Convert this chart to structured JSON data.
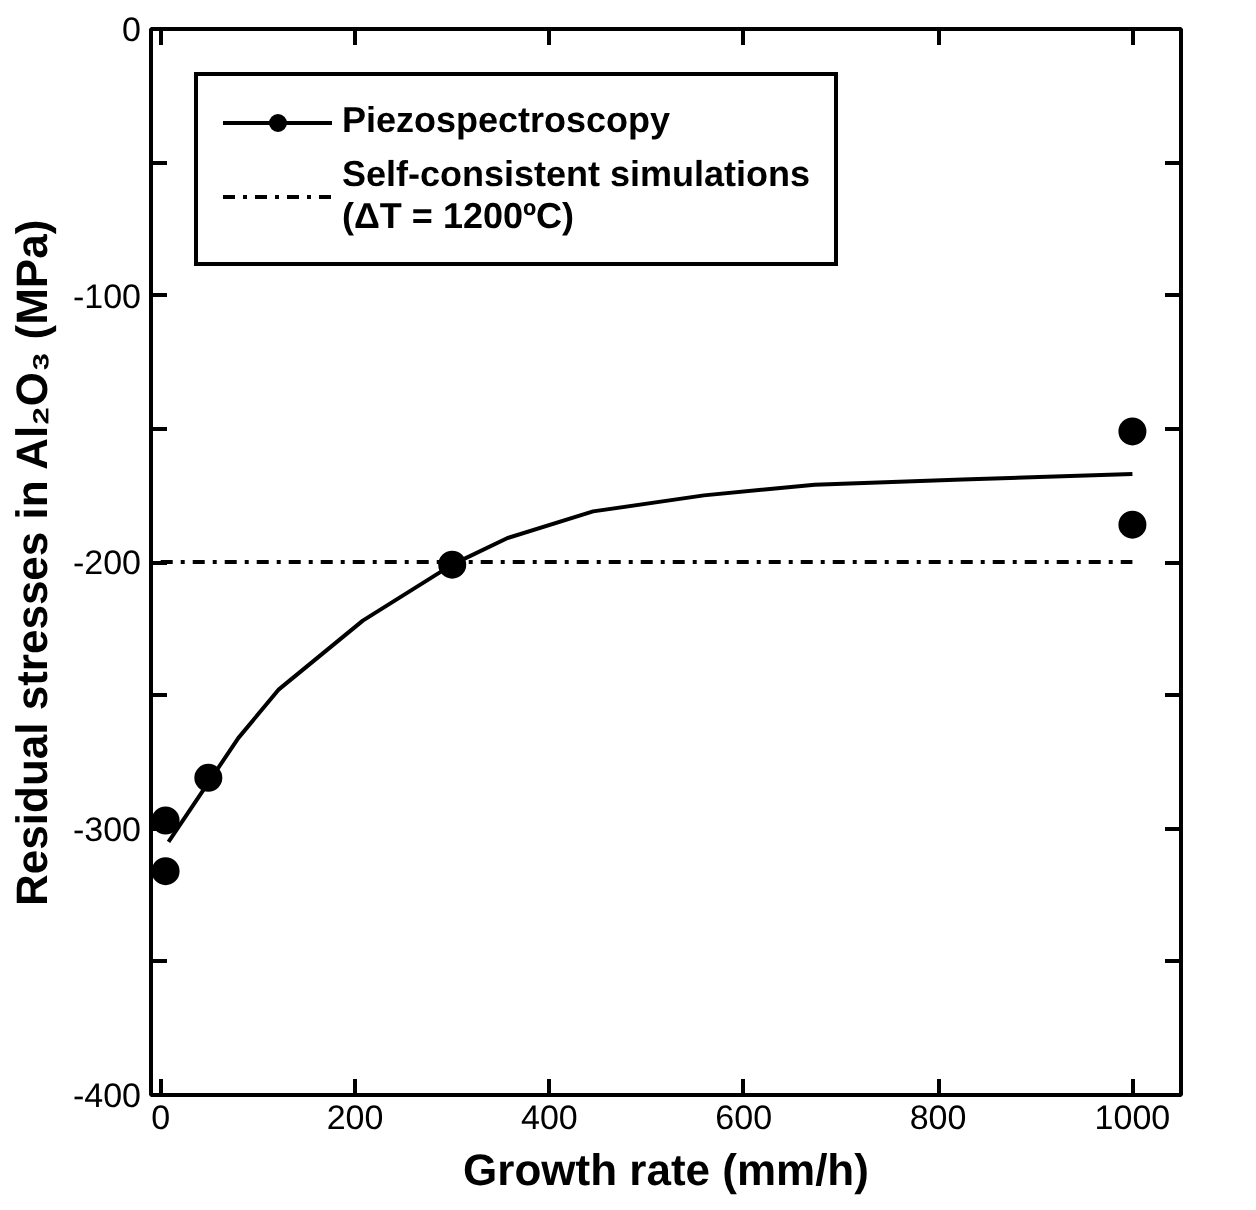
{
  "chart_data": {
    "type": "scatter",
    "xlabel": "Growth rate (mm/h)",
    "ylabel": "Residual stresses in Al₂O₃ (MPa)",
    "xlim": [
      -10,
      1050
    ],
    "ylim": [
      -400,
      0
    ],
    "xticks": [
      0,
      200,
      400,
      600,
      800,
      1000
    ],
    "yticks": [
      -400,
      {
        "value": -350,
        "label": null
      },
      -300,
      {
        "value": -250,
        "label": null
      },
      -200,
      {
        "value": -150,
        "label": null
      },
      -100,
      {
        "value": -50,
        "label": null
      },
      0
    ],
    "grid": false,
    "legend": "top left",
    "series": [
      {
        "name": "Piezospectroscopy",
        "marker": "circle",
        "color": "#000000",
        "x": [
          5,
          5,
          49,
          300,
          1000,
          1000
        ],
        "values": [
          -297,
          -316,
          -281,
          -201,
          -151,
          -186
        ]
      },
      {
        "type": "line",
        "color": "#000000",
        "line_style": "solid",
        "x": [
          8,
          80,
          121,
          208,
          300,
          357,
          445,
          559,
          673,
          825,
          1000
        ],
        "values": [
          -305,
          -266,
          -248,
          -222,
          -201,
          -191,
          -181,
          -175,
          -171,
          -169,
          -167
        ]
      },
      {
        "name": "Self-consistent simulations\n(ΔT = 1200ºC)",
        "type": "line",
        "color": "#000000",
        "line_style": "dashdot",
        "x": [
          0,
          1000
        ],
        "values": [
          -200,
          -200
        ]
      }
    ]
  }
}
